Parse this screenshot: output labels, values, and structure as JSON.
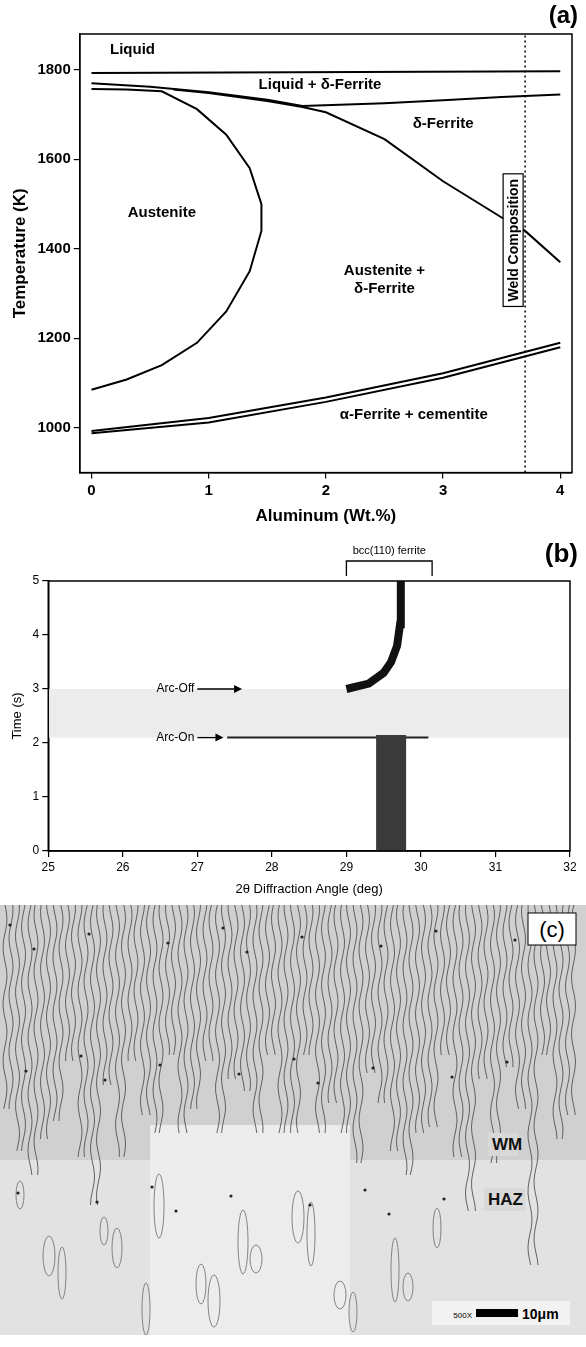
{
  "chart_data": [
    {
      "type": "line",
      "panel": "(a)",
      "x_label": "Aluminum (Wt.%)",
      "y_label": "Temperature (K)",
      "xlim": [
        -0.1,
        4.1
      ],
      "xticks": [
        0,
        1,
        2,
        3,
        4
      ],
      "ylim": [
        900,
        1880
      ],
      "yticks": [
        1000,
        1200,
        1400,
        1600,
        1800
      ],
      "grid": false,
      "series": [
        {
          "x": [
            0,
            4
          ],
          "values": [
            1793,
            1797
          ],
          "color": "#000000",
          "line_style": "solid"
        },
        {
          "x": [
            0,
            0.5,
            1,
            1.5,
            1.8,
            2.5,
            3,
            3.5,
            4
          ],
          "values": [
            1770,
            1762,
            1750,
            1733,
            1719,
            1725,
            1732,
            1739,
            1745
          ],
          "color": "#000000",
          "line_style": "solid"
        },
        {
          "x": [
            0.7,
            1,
            1.5,
            1.8,
            2,
            2.5,
            3,
            3.5,
            3.7,
            4
          ],
          "values": [
            1756,
            1748,
            1730,
            1717,
            1705,
            1645,
            1551,
            1470,
            1440,
            1370
          ],
          "color": "#000000",
          "line_style": "solid"
        },
        {
          "x": [
            0,
            0.3,
            0.6,
            0.9,
            1.15,
            1.35,
            1.45,
            1.45,
            1.35,
            1.15,
            0.9,
            0.6,
            0.3,
            0
          ],
          "values": [
            1757,
            1756,
            1752,
            1712,
            1655,
            1580,
            1500,
            1440,
            1350,
            1260,
            1190,
            1140,
            1108,
            1085
          ],
          "color": "#000000",
          "line_style": "solid"
        },
        {
          "x": [
            0,
            1,
            2,
            3,
            4
          ],
          "values": [
            993,
            1022,
            1068,
            1122,
            1190
          ],
          "color": "#000000",
          "line_style": "solid"
        },
        {
          "x": [
            0,
            1,
            2,
            3,
            4
          ],
          "values": [
            988,
            1012,
            1058,
            1112,
            1180
          ],
          "color": "#000000",
          "line_style": "solid"
        }
      ],
      "annotations": [
        {
          "text": "Liquid"
        },
        {
          "text": "Liquid + δ-Ferrite"
        },
        {
          "text": "δ-Ferrite"
        },
        {
          "text": "Austenite"
        },
        {
          "text": "Austenite + δ-Ferrite"
        },
        {
          "text": "α-Ferrite + cementite"
        }
      ],
      "reference_line": {
        "text": "Weld Composition",
        "x": 3.7,
        "line_style": "dotted"
      }
    },
    {
      "type": "line",
      "panel": "(b)",
      "x_label": "2θ Diffraction Angle (deg)",
      "y_label": "Time (s)",
      "xlim": [
        25,
        32
      ],
      "xticks": [
        25,
        26,
        27,
        28,
        29,
        30,
        31,
        32
      ],
      "ylim": [
        0,
        5
      ],
      "yticks": [
        0,
        1,
        2,
        3,
        4,
        5
      ],
      "grid": false,
      "series": [
        {
          "x": [
            29.6,
            29.6
          ],
          "values": [
            0,
            2.15
          ],
          "color": "#3a3a3a",
          "line_style": "solid"
        },
        {
          "x": [
            27.4,
            30.1
          ],
          "values": [
            2.1,
            2.1
          ],
          "color": "#222222",
          "line_style": "solid"
        },
        {
          "x": [
            29.0,
            29.3,
            29.5,
            29.6,
            29.68,
            29.72,
            29.73
          ],
          "values": [
            3.0,
            3.1,
            3.3,
            3.5,
            3.8,
            4.2,
            5.0
          ],
          "color": "#111111",
          "line_style": "solid"
        }
      ],
      "peak_label": {
        "text": "bcc(110) ferrite",
        "x": [
          29.0,
          30.15
        ]
      },
      "annotations": [
        {
          "text": "Arc-Off",
          "y": 3.0
        },
        {
          "text": "Arc-On",
          "y": 2.1
        }
      ]
    }
  ],
  "micrograph": {
    "panel": "(c)",
    "labels": [
      "WM",
      "HAZ"
    ],
    "magnification": "500X",
    "scale_bar": "10μm"
  }
}
